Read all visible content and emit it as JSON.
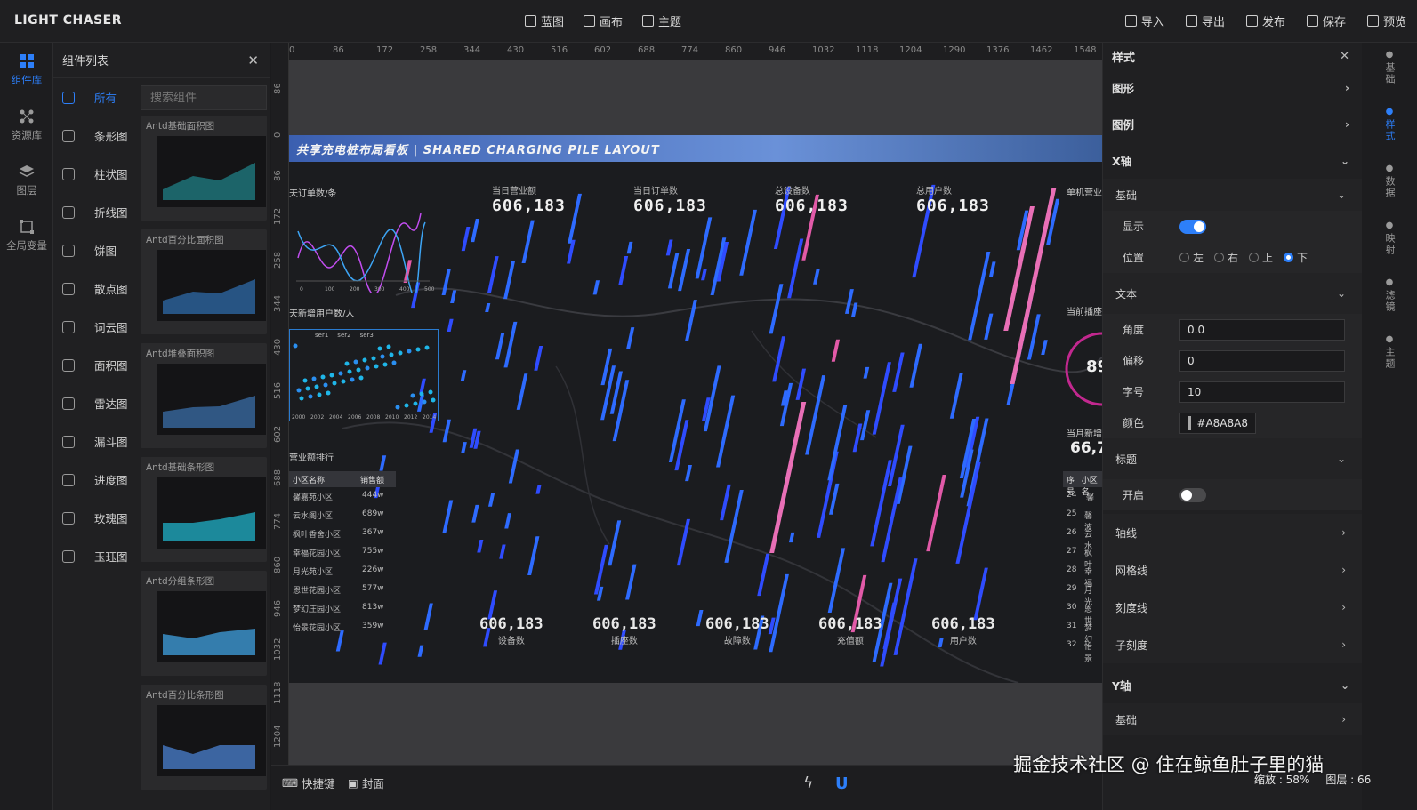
{
  "app": {
    "brand": "LIGHT CHASER"
  },
  "toolbar": {
    "center": [
      "蓝图",
      "画布",
      "主题"
    ],
    "right": [
      "导入",
      "导出",
      "发布",
      "保存",
      "预览"
    ]
  },
  "rail": [
    {
      "label": "组件库",
      "icon": "grid-icon"
    },
    {
      "label": "资源库",
      "icon": "nodes-icon"
    },
    {
      "label": "图层",
      "icon": "layers-icon"
    },
    {
      "label": "全局变量",
      "icon": "variable-icon"
    }
  ],
  "components": {
    "title": "组件列表",
    "search_placeholder": "搜索组件",
    "categories": [
      "所有",
      "条形图",
      "柱状图",
      "折线图",
      "饼图",
      "散点图",
      "词云图",
      "面积图",
      "雷达图",
      "漏斗图",
      "进度图",
      "玫瑰图",
      "玉珏图"
    ],
    "cards": [
      "Antd基础面积图",
      "Antd百分比面积图",
      "Antd堆叠面积图",
      "Antd基础条形图",
      "Antd分组条形图",
      "Antd百分比条形图"
    ]
  },
  "ruler": {
    "unit": "px",
    "h": [
      "0",
      "86",
      "172",
      "258",
      "344",
      "430",
      "516",
      "602",
      "688",
      "774",
      "860",
      "946",
      "1032",
      "1118",
      "1204",
      "1290",
      "1376",
      "1462",
      "1548"
    ],
    "v": [
      "86",
      "0",
      "86",
      "172",
      "258",
      "344",
      "430",
      "516",
      "602",
      "688",
      "774",
      "860",
      "946",
      "1032",
      "1118",
      "1204"
    ]
  },
  "board": {
    "title": "共享充电桩布局看板 | SHARED CHARGING PILE LAYOUT",
    "kpis": [
      {
        "label": "当日营业额",
        "value": "606,183"
      },
      {
        "label": "当日订单数",
        "value": "606,183"
      },
      {
        "label": "总设备数",
        "value": "606,183"
      },
      {
        "label": "总用户数",
        "value": "606,183"
      }
    ],
    "labels": {
      "orders": "天订单数/条",
      "newUsers": "天新增用户数/人",
      "revenueRank": "营业额排行",
      "singleRev": "单机营业",
      "currentPlug": "当前插座",
      "monthNew": "当月新增",
      "monthNewValue": "66,7",
      "gauge": "89"
    },
    "line_x": [
      "0",
      "100",
      "200",
      "300",
      "400",
      "500"
    ],
    "scatter_legend": [
      "ser1",
      "ser2",
      "ser3"
    ],
    "scatter_x": [
      "2000",
      "2002",
      "2004",
      "2006",
      "2008",
      "2010",
      "2012",
      "2014"
    ],
    "rank": {
      "headers": [
        "小区名称",
        "销售额"
      ],
      "rows": [
        [
          "馨嘉苑小区",
          "444w"
        ],
        [
          "云水阁小区",
          "689w"
        ],
        [
          "枫叶香舍小区",
          "367w"
        ],
        [
          "幸福花园小区",
          "755w"
        ],
        [
          "月光苑小区",
          "226w"
        ],
        [
          "恩世花园小区",
          "577w"
        ],
        [
          "梦幻庄园小区",
          "813w"
        ],
        [
          "怡景花园小区",
          "359w"
        ]
      ]
    },
    "rightTable": {
      "headers": [
        "序号",
        "小区名"
      ],
      "rows": [
        [
          "24",
          "馨"
        ],
        [
          "25",
          "馨波"
        ],
        [
          "26",
          "云水"
        ],
        [
          "27",
          "枫叶"
        ],
        [
          "28",
          "幸福"
        ],
        [
          "29",
          "月光"
        ],
        [
          "30",
          "恩世"
        ],
        [
          "31",
          "梦幻"
        ],
        [
          "32",
          "怡景"
        ]
      ]
    },
    "bottom_stats": [
      {
        "label": "设备数",
        "value": "606,183"
      },
      {
        "label": "插座数",
        "value": "606,183"
      },
      {
        "label": "故障数",
        "value": "606,183"
      },
      {
        "label": "充值额",
        "value": "606,183"
      },
      {
        "label": "用户数",
        "value": "606,183"
      }
    ]
  },
  "bottomBar": {
    "shortcut": "快捷键",
    "cover": "封面"
  },
  "style": {
    "title": "样式",
    "graph": "图形",
    "legend": "图例",
    "xaxis": "X轴",
    "basic": "基础",
    "show": "显示",
    "position": "位置",
    "positions": [
      "左",
      "右",
      "上",
      "下"
    ],
    "position_selected": "下",
    "text": "文本",
    "angle_label": "角度",
    "angle": "0.0",
    "offset_label": "偏移",
    "offset": "0",
    "fontsize_label": "字号",
    "fontsize": "10",
    "color_label": "颜色",
    "color": "#A8A8A8",
    "axisTitle": "标题",
    "enable": "开启",
    "axisLine": "轴线",
    "gridLine": "网格线",
    "tickLine": "刻度线",
    "subTick": "子刻度",
    "yaxis": "Y轴",
    "ybasic": "基础"
  },
  "vtabs": [
    "基础",
    "样式",
    "数据",
    "映射",
    "滤镜",
    "主题"
  ],
  "status": {
    "zoom": "缩放 : 58%",
    "layers": "图层 : 66"
  },
  "watermark": "掘金技术社区 @ 住在鲸鱼肚子里的猫"
}
